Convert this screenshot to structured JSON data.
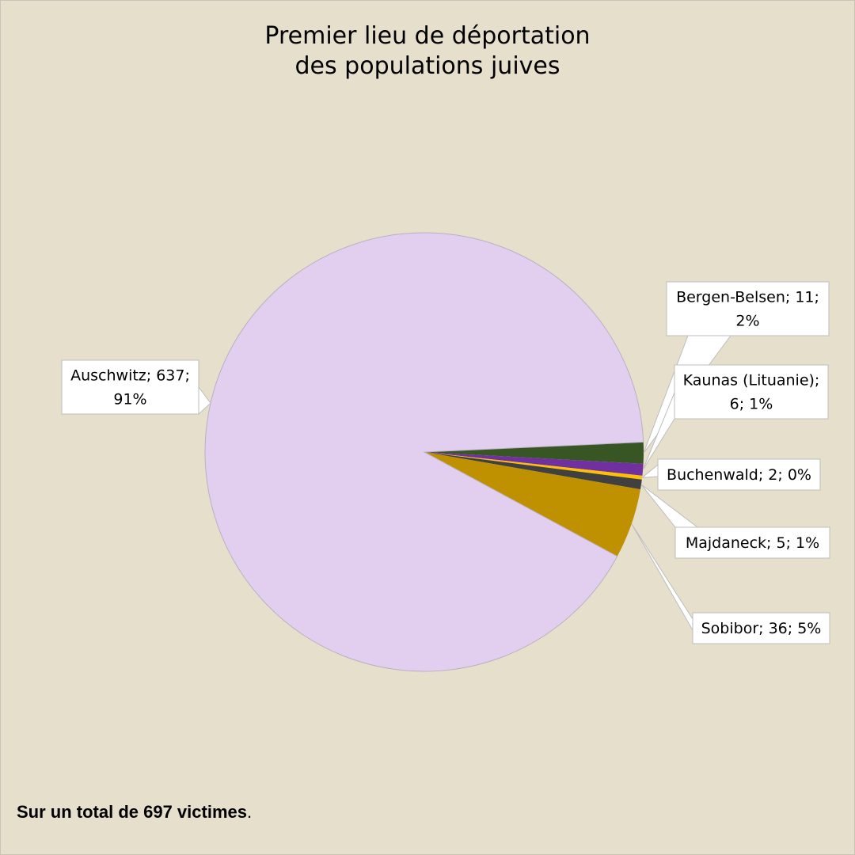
{
  "chart_data": {
    "type": "pie",
    "title": [
      "Premier lieu de déportation",
      "des populations juives"
    ],
    "slices": [
      {
        "name": "Bergen-Belsen",
        "value": 11,
        "percent": "2%",
        "color": "#375623",
        "label": [
          "Bergen-Belsen; 11;",
          "2%"
        ]
      },
      {
        "name": "Kaunas (Lituanie)",
        "value": 6,
        "percent": "1%",
        "color": "#7030a0",
        "label": [
          "Kaunas (Lituanie);",
          "6; 1%"
        ]
      },
      {
        "name": "Buchenwald",
        "value": 2,
        "percent": "0%",
        "color": "#ffc000",
        "label": [
          "Buchenwald; 2; 0%"
        ]
      },
      {
        "name": "Majdaneck",
        "value": 5,
        "percent": "1%",
        "color": "#404040",
        "label": [
          "Majdaneck; 5; 1%"
        ]
      },
      {
        "name": "Sobibor",
        "value": 36,
        "percent": "5%",
        "color": "#bf9000",
        "label": [
          "Sobibor; 36; 5%"
        ]
      },
      {
        "name": "Auschwitz",
        "value": 637,
        "percent": "91%",
        "color": "#e2cff0",
        "label": [
          "Auschwitz; 637;",
          "91%"
        ]
      }
    ]
  },
  "footnote": {
    "bold": "Sur un total de 697 victimes",
    "tail": "."
  }
}
